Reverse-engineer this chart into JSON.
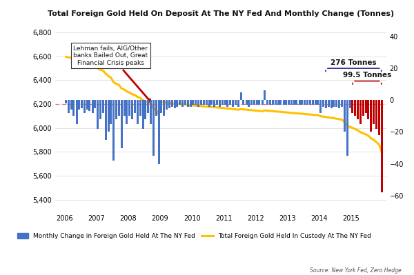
{
  "title": "Total Foreign Gold Held On Deposit At The NY Fed And Monthly Change (Tonnes)",
  "source": "Source: New York Fed, Zero Hedge",
  "legend1": "Monthly Change in Foreign Gold Held At The NY Fed",
  "legend2": "Total Foreign Gold Held In Custody At The NY Fed",
  "ylim_left": [
    5300,
    6900
  ],
  "ylim_right": [
    -70,
    50
  ],
  "yticks_left": [
    5400,
    5600,
    5800,
    6000,
    6200,
    6400,
    6600,
    6800
  ],
  "yticks_right": [
    -60,
    -40,
    -20,
    0,
    20,
    40
  ],
  "hline_value": 6200,
  "bar_color": "#4472C4",
  "bar_color_red": "#C00000",
  "line_color": "#FFC000",
  "hline_color": "#FF6060",
  "bg_color": "#FFFFFF",
  "annotation1_text": "Lehman fails, AIG/Other\nbanks Bailed Out, Great\nFinancial Crisis peaks",
  "annotation2_text": "276 Tonnes",
  "annotation3_text": "99.5 Tonnes",
  "months": [
    2006.04,
    2006.12,
    2006.21,
    2006.29,
    2006.38,
    2006.46,
    2006.54,
    2006.62,
    2006.71,
    2006.79,
    2006.88,
    2006.96,
    2007.04,
    2007.12,
    2007.21,
    2007.29,
    2007.38,
    2007.46,
    2007.54,
    2007.62,
    2007.71,
    2007.79,
    2007.88,
    2007.96,
    2008.04,
    2008.12,
    2008.21,
    2008.29,
    2008.38,
    2008.46,
    2008.54,
    2008.62,
    2008.71,
    2008.79,
    2008.88,
    2008.96,
    2009.04,
    2009.12,
    2009.21,
    2009.29,
    2009.38,
    2009.46,
    2009.54,
    2009.62,
    2009.71,
    2009.79,
    2009.88,
    2009.96,
    2010.04,
    2010.12,
    2010.21,
    2010.29,
    2010.38,
    2010.46,
    2010.54,
    2010.62,
    2010.71,
    2010.79,
    2010.88,
    2010.96,
    2011.04,
    2011.12,
    2011.21,
    2011.29,
    2011.38,
    2011.46,
    2011.54,
    2011.62,
    2011.71,
    2011.79,
    2011.88,
    2011.96,
    2012.04,
    2012.12,
    2012.21,
    2012.29,
    2012.38,
    2012.46,
    2012.54,
    2012.62,
    2012.71,
    2012.79,
    2012.88,
    2012.96,
    2013.04,
    2013.12,
    2013.21,
    2013.29,
    2013.38,
    2013.46,
    2013.54,
    2013.62,
    2013.71,
    2013.79,
    2013.88,
    2013.96,
    2014.04,
    2014.12,
    2014.21,
    2014.29,
    2014.38,
    2014.46,
    2014.54,
    2014.62,
    2014.71,
    2014.79,
    2014.88,
    2014.96,
    2015.04,
    2015.12,
    2015.21,
    2015.29,
    2015.38,
    2015.46,
    2015.54,
    2015.62,
    2015.71,
    2015.79,
    2015.88,
    2015.96
  ],
  "monthly_changes": [
    -2,
    -8,
    -6,
    -10,
    -15,
    -6,
    -5,
    -8,
    -6,
    -7,
    -8,
    -5,
    -18,
    -12,
    -8,
    -25,
    -20,
    -15,
    -38,
    -12,
    -10,
    -30,
    -10,
    -15,
    -10,
    -12,
    -8,
    -15,
    -10,
    -18,
    -12,
    -8,
    -15,
    -35,
    -10,
    -40,
    -8,
    -10,
    -6,
    -5,
    -4,
    -5,
    -4,
    -3,
    -4,
    -3,
    -4,
    -4,
    -3,
    -3,
    -4,
    -3,
    -3,
    -3,
    -4,
    -3,
    -4,
    -3,
    -4,
    -3,
    -3,
    -4,
    -3,
    -4,
    -3,
    -4,
    5,
    -3,
    -3,
    -4,
    -3,
    -3,
    -3,
    -3,
    -3,
    6,
    -3,
    -3,
    -3,
    -3,
    -3,
    -3,
    -3,
    -3,
    -3,
    -3,
    -3,
    -3,
    -3,
    -3,
    -3,
    -3,
    -3,
    -3,
    -3,
    -3,
    -8,
    -4,
    -5,
    -4,
    -5,
    -4,
    -4,
    -5,
    -4,
    -20,
    -35,
    -5,
    -8,
    -10,
    -12,
    -15,
    -10,
    -8,
    -12,
    -20,
    -15,
    -18,
    -22,
    -58
  ],
  "total_gold": [
    6598,
    6593,
    6588,
    6578,
    6563,
    6557,
    6552,
    6544,
    6539,
    6532,
    6524,
    6519,
    6501,
    6489,
    6481,
    6456,
    6436,
    6421,
    6383,
    6371,
    6361,
    6331,
    6321,
    6306,
    6296,
    6284,
    6276,
    6261,
    6251,
    6233,
    6221,
    6213,
    6198,
    6163,
    6153,
    6113,
    6220,
    6215,
    6212,
    6209,
    6207,
    6204,
    6202,
    6200,
    6198,
    6196,
    6193,
    6190,
    6189,
    6187,
    6185,
    6183,
    6181,
    6180,
    6178,
    6176,
    6174,
    6172,
    6170,
    6168,
    6166,
    6163,
    6161,
    6158,
    6156,
    6153,
    6158,
    6156,
    6154,
    6151,
    6149,
    6147,
    6145,
    6143,
    6141,
    6147,
    6145,
    6143,
    6141,
    6139,
    6137,
    6135,
    6133,
    6131,
    6129,
    6127,
    6125,
    6123,
    6121,
    6119,
    6117,
    6115,
    6113,
    6111,
    6109,
    6107,
    6099,
    6096,
    6092,
    6089,
    6085,
    6082,
    6078,
    6074,
    6070,
    6050,
    6015,
    6010,
    6002,
    5992,
    5980,
    5965,
    5955,
    5947,
    5935,
    5915,
    5900,
    5882,
    5860,
    5800
  ],
  "xticks": [
    2006,
    2007,
    2008,
    2009,
    2010,
    2011,
    2012,
    2013,
    2014,
    2015
  ],
  "xmin": 2005.7,
  "xmax": 2016.1,
  "red_bar_start": 2015.0,
  "bracket_276_x1": 2014.2,
  "bracket_276_x2": 2015.95,
  "bracket_276_y": 20,
  "bracket_99_x1": 2015.05,
  "bracket_99_x2": 2015.95,
  "bracket_99_y": 12
}
